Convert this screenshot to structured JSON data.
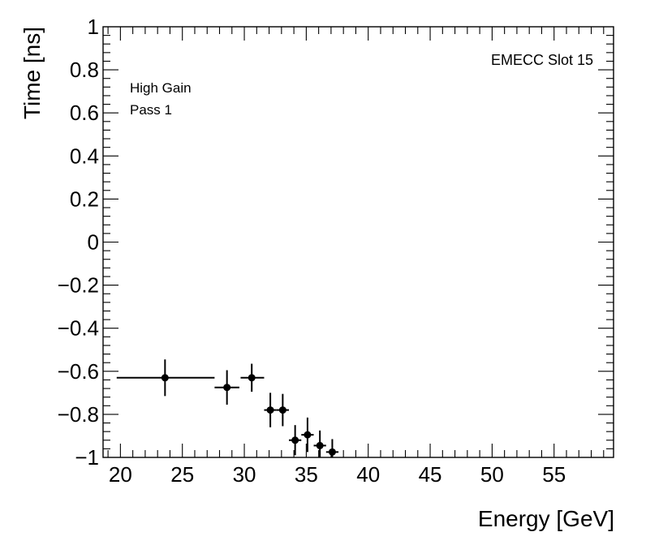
{
  "chart_data": {
    "type": "scatter",
    "title": "",
    "xlabel": "Energy [GeV]",
    "ylabel": "Time [ns]",
    "xlim": [
      18.6,
      59.8
    ],
    "ylim": [
      -1,
      1
    ],
    "xticks": [
      20,
      25,
      30,
      35,
      40,
      45,
      50,
      55
    ],
    "xtick_labels": [
      "20",
      "25",
      "30",
      "35",
      "40",
      "45",
      "50",
      "55"
    ],
    "yticks": [
      -1,
      -0.8,
      -0.6,
      -0.4,
      -0.2,
      0,
      0.2,
      0.4,
      0.6,
      0.8,
      1
    ],
    "ytick_labels": [
      "−1",
      "−0.8",
      "−0.6",
      "−0.4",
      "−0.2",
      "0",
      "0.2",
      "0.4",
      "0.6",
      "0.8",
      "1"
    ],
    "grid": false,
    "annotations": {
      "gain": "High Gain",
      "pass": "Pass 1",
      "slot": "EMECC Slot 15"
    },
    "series": [
      {
        "name": "EMECC Slot 15",
        "points": [
          {
            "x": 23.6,
            "y": -0.63,
            "xerr_low": 3.9,
            "xerr_high": 4.0,
            "yerr": 0.085
          },
          {
            "x": 28.6,
            "y": -0.675,
            "xerr_low": 1.0,
            "xerr_high": 1.0,
            "yerr": 0.08
          },
          {
            "x": 30.6,
            "y": -0.63,
            "xerr_low": 0.9,
            "xerr_high": 1.0,
            "yerr": 0.065
          },
          {
            "x": 32.1,
            "y": -0.78,
            "xerr_low": 0.5,
            "xerr_high": 0.5,
            "yerr": 0.08
          },
          {
            "x": 33.1,
            "y": -0.78,
            "xerr_low": 0.5,
            "xerr_high": 0.5,
            "yerr": 0.075
          },
          {
            "x": 34.1,
            "y": -0.92,
            "xerr_low": 0.5,
            "xerr_high": 0.5,
            "yerr": 0.07
          },
          {
            "x": 35.1,
            "y": -0.895,
            "xerr_low": 0.5,
            "xerr_high": 0.5,
            "yerr": 0.08
          },
          {
            "x": 36.1,
            "y": -0.945,
            "xerr_low": 0.5,
            "xerr_high": 0.5,
            "yerr": 0.07
          },
          {
            "x": 37.1,
            "y": -0.975,
            "xerr_low": 0.5,
            "xerr_high": 0.5,
            "yerr": 0.06
          }
        ]
      }
    ]
  }
}
